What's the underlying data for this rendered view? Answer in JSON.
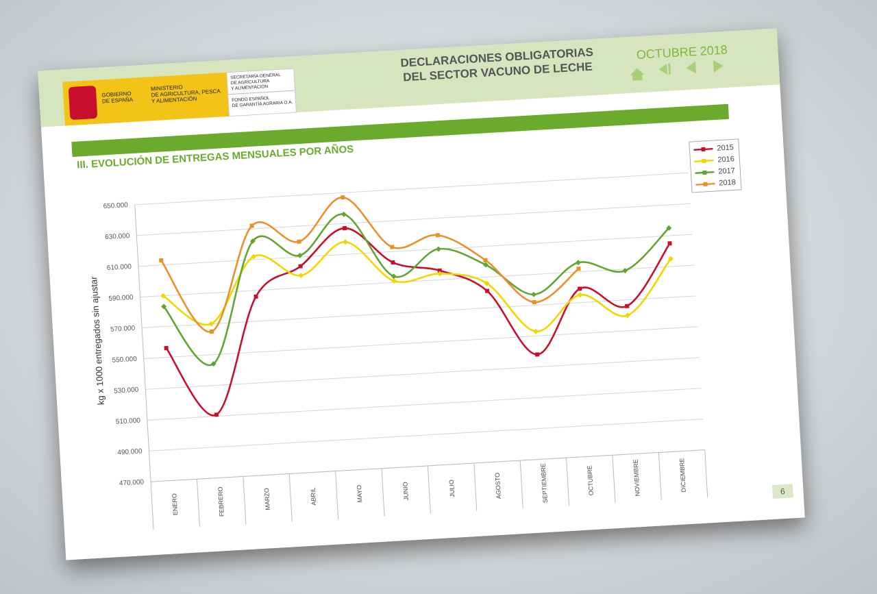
{
  "header": {
    "gov": [
      "GOBIERNO",
      "DE ESPAÑA"
    ],
    "ministry": [
      "MINISTERIO",
      "DE AGRICULTURA, PESCA",
      "Y ALIMENTACIÓN"
    ],
    "secretariat": [
      "SECRETARÍA GENERAL",
      "DE AGRICULTURA",
      "Y ALIMENTACIÓN"
    ],
    "fund": [
      "FONDO ESPAÑOL",
      "DE GARANTÍA AGRARIA O.A."
    ],
    "title": [
      "DECLARACIONES OBLIGATORIAS",
      "DEL SECTOR VACUNO DE LECHE"
    ],
    "date": "OCTUBRE 2018"
  },
  "page_number": "6",
  "chart_data": {
    "type": "line",
    "title": "III. EVOLUCIÓN DE ENTREGAS MENSUALES POR AÑOS",
    "y_label": "kg x 1000 entregados sin ajustar",
    "categories": [
      "ENERO",
      "FEBRERO",
      "MARZO",
      "ABRIL",
      "MAYO",
      "JUNIO",
      "JULIO",
      "AGOSTO",
      "SEPTIEMBRE",
      "OCTUBRE",
      "NOVIEMBRE",
      "DICIEMBRE"
    ],
    "series": [
      {
        "name": "2015",
        "color": "#c8102e",
        "marker": "square",
        "values": [
          556000,
          511000,
          586000,
          604000,
          627000,
          603000,
          596000,
          581000,
          538000,
          579000,
          566000,
          605000
        ]
      },
      {
        "name": "2016",
        "color": "#f2d600",
        "marker": "diamond",
        "values": [
          590000,
          570000,
          612000,
          598000,
          618000,
          591000,
          594000,
          586000,
          553000,
          575000,
          560000,
          595000
        ]
      },
      {
        "name": "2017",
        "color": "#62a531",
        "marker": "diamond",
        "values": [
          583000,
          544000,
          622000,
          611000,
          636000,
          594000,
          610000,
          598000,
          577000,
          596000,
          589000,
          615000
        ]
      },
      {
        "name": "2018",
        "color": "#e8902a",
        "marker": "square",
        "values": [
          613000,
          565000,
          632000,
          620000,
          647000,
          613000,
          619000,
          601000,
          572000,
          592000,
          null,
          null
        ]
      }
    ],
    "ylim": [
      470000,
      650000
    ],
    "yticks": [
      {
        "value": 470000,
        "label": "470.000"
      },
      {
        "value": 490000,
        "label": "490.000"
      },
      {
        "value": 510000,
        "label": "510.000"
      },
      {
        "value": 530000,
        "label": "530.000"
      },
      {
        "value": 550000,
        "label": "550.000"
      },
      {
        "value": 570000,
        "label": "570.000"
      },
      {
        "value": 590000,
        "label": "590.000"
      },
      {
        "value": 610000,
        "label": "610.000"
      },
      {
        "value": 630000,
        "label": "630.000"
      },
      {
        "value": 650000,
        "label": "650.000"
      }
    ],
    "grid": true,
    "legend": "top-right"
  }
}
